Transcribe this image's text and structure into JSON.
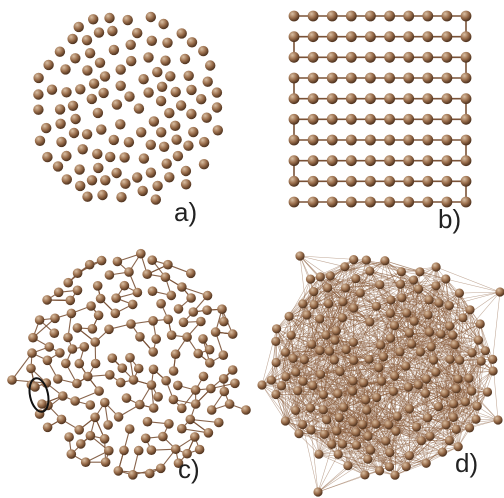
{
  "colors": {
    "atom_light": "#d9bfa3",
    "atom_mid": "#9a6e4c",
    "atom_dark": "#4e321e",
    "bond": "#7a5237",
    "bond_dense": "#8a5c3c",
    "ellipse": "#111111",
    "label": "#222222",
    "background": "#ffffff"
  },
  "panels": [
    {
      "id": "a",
      "label": "a)",
      "kind": "disordered gas of atoms"
    },
    {
      "id": "b",
      "label": "b)",
      "kind": "ordered polymer chain on square lattice"
    },
    {
      "id": "c",
      "label": "c)",
      "kind": "sparse random bonded network"
    },
    {
      "id": "d",
      "label": "d)",
      "kind": "dense fully bonded cluster"
    }
  ],
  "lattice": {
    "rows": 10,
    "columns": 10
  }
}
